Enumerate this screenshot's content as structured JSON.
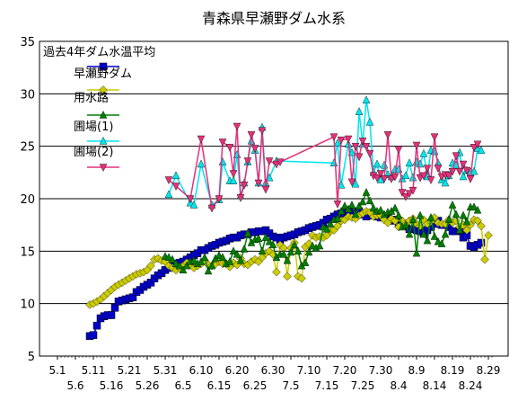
{
  "chart_data": {
    "type": "line",
    "title": "青森県早瀬野ダム水系",
    "xlabel": "",
    "ylabel": "",
    "ylim": [
      5,
      35
    ],
    "yticks": [
      5,
      10,
      15,
      20,
      25,
      30,
      35
    ],
    "x_domain": [
      0,
      121
    ],
    "x_ticks_upper": [
      {
        "label": "5.1",
        "x": 0
      },
      {
        "label": "5.11",
        "x": 10
      },
      {
        "label": "5.21",
        "x": 20
      },
      {
        "label": "5.31",
        "x": 30
      },
      {
        "label": "6.10",
        "x": 40
      },
      {
        "label": "6.20",
        "x": 50
      },
      {
        "label": "6.30",
        "x": 60
      },
      {
        "label": "7.10",
        "x": 70
      },
      {
        "label": "7.20",
        "x": 80
      },
      {
        "label": "7.30",
        "x": 90
      },
      {
        "label": "8.9",
        "x": 100
      },
      {
        "label": "8.19",
        "x": 110
      },
      {
        "label": "8.29",
        "x": 120
      }
    ],
    "x_ticks_lower": [
      {
        "label": "5.6",
        "x": 5
      },
      {
        "label": "5.16",
        "x": 15
      },
      {
        "label": "5.26",
        "x": 25
      },
      {
        "label": "6.5",
        "x": 35
      },
      {
        "label": "6.15",
        "x": 45
      },
      {
        "label": "6.25",
        "x": 55
      },
      {
        "label": "7.5",
        "x": 65
      },
      {
        "label": "7.15",
        "x": 75
      },
      {
        "label": "7.25",
        "x": 85
      },
      {
        "label": "8.4",
        "x": 95
      },
      {
        "label": "8.14",
        "x": 105
      },
      {
        "label": "8.24",
        "x": 115
      }
    ],
    "grid": "horizontal",
    "legend_position": "top-left",
    "series": [
      {
        "name": "過去4年ダム水温平均",
        "color": "#0000cc",
        "marker": "square",
        "x": [
          9,
          10,
          11,
          12,
          13,
          14,
          15,
          16,
          17,
          18,
          19,
          20,
          21,
          22,
          23,
          24,
          25,
          26,
          27,
          28,
          29,
          30,
          31,
          32,
          33,
          34,
          35,
          36,
          37,
          38,
          39,
          40,
          41,
          42,
          43,
          44,
          45,
          46,
          47,
          48,
          49,
          50,
          51,
          52,
          53,
          54,
          55,
          56,
          57,
          58,
          59,
          60,
          61,
          62,
          63,
          64,
          65,
          66,
          67,
          68,
          69,
          70,
          71,
          72,
          73,
          74,
          75,
          76,
          77,
          78,
          79,
          80,
          81,
          82,
          83,
          84,
          85,
          86,
          87,
          88,
          89,
          90,
          91,
          92,
          93,
          94,
          95,
          96,
          97,
          98,
          99,
          100,
          101,
          102,
          103,
          104,
          105,
          106,
          107,
          108,
          109,
          110,
          111,
          112,
          113,
          114,
          115,
          116,
          117,
          118
        ],
        "y": [
          6.9,
          7.0,
          7.9,
          8.6,
          8.8,
          8.9,
          8.9,
          9.6,
          10.2,
          10.3,
          10.4,
          10.5,
          10.6,
          11.1,
          11.3,
          11.6,
          11.8,
          12.0,
          12.4,
          12.7,
          12.9,
          13.2,
          13.4,
          13.6,
          13.8,
          13.9,
          14.0,
          14.2,
          14.4,
          14.6,
          14.8,
          15.1,
          15.1,
          15.3,
          15.5,
          15.6,
          15.8,
          15.9,
          16.0,
          16.2,
          16.3,
          16.3,
          16.5,
          16.6,
          16.6,
          16.8,
          16.8,
          16.9,
          16.9,
          17.0,
          16.7,
          16.4,
          16.3,
          16.1,
          16.3,
          16.4,
          16.5,
          16.6,
          16.8,
          16.9,
          17.0,
          17.2,
          17.3,
          17.4,
          17.5,
          17.7,
          18.0,
          18.1,
          18.3,
          18.5,
          18.6,
          18.7,
          18.8,
          18.7,
          18.6,
          18.8,
          18.5,
          18.3,
          18.6,
          18.4,
          18.3,
          18.2,
          18.3,
          18.1,
          17.9,
          18.0,
          17.6,
          17.5,
          17.4,
          17.1,
          17.1,
          17.0,
          16.9,
          16.7,
          17.0,
          17.3,
          17.6,
          17.9,
          17.5,
          17.5,
          17.3,
          16.9,
          16.9,
          17.0,
          16.3,
          16.5,
          15.5,
          15.4,
          15.6,
          15.8
        ]
      },
      {
        "name": "早瀬野ダム",
        "color": "#cccc00",
        "marker": "diamond",
        "x": [
          9,
          10,
          11,
          12,
          13,
          14,
          15,
          16,
          17,
          18,
          19,
          20,
          21,
          22,
          23,
          24,
          25,
          26,
          27,
          28,
          29,
          30,
          31,
          32,
          33,
          34,
          35,
          36,
          37,
          38,
          39,
          40,
          41,
          42,
          43,
          44,
          45,
          46,
          47,
          48,
          49,
          50,
          51,
          52,
          53,
          54,
          55,
          56,
          57,
          58,
          59,
          60,
          61,
          62,
          63,
          64,
          65,
          66,
          67,
          68,
          69,
          70,
          71,
          72,
          73,
          74,
          75,
          76,
          77,
          78,
          79,
          80,
          81,
          82,
          83,
          84,
          85,
          86,
          87,
          88,
          89,
          90,
          91,
          92,
          93,
          94,
          95,
          96,
          97,
          98,
          99,
          100,
          101,
          102,
          103,
          104,
          105,
          106,
          107,
          108,
          109,
          110,
          111,
          112,
          113,
          114,
          115,
          116,
          117,
          118,
          119,
          120
        ],
        "y": [
          9.9,
          10.0,
          10.2,
          10.4,
          10.7,
          11.0,
          11.3,
          11.6,
          11.8,
          12.0,
          12.2,
          12.4,
          12.6,
          12.8,
          12.9,
          13.0,
          13.2,
          13.6,
          14.2,
          14.3,
          14.1,
          14.0,
          13.6,
          13.4,
          13.2,
          13.4,
          13.6,
          13.9,
          13.7,
          13.4,
          13.6,
          13.8,
          14.1,
          13.7,
          13.6,
          13.8,
          14.0,
          13.8,
          13.8,
          13.5,
          13.9,
          13.7,
          14.3,
          13.8,
          13.7,
          14.0,
          14.2,
          14.0,
          14.4,
          14.8,
          15.0,
          14.7,
          13.0,
          15.6,
          15.3,
          12.6,
          15.3,
          15.8,
          12.6,
          12.4,
          15.4,
          15.7,
          16.5,
          16.3,
          16.4,
          16.3,
          16.5,
          16.9,
          17.0,
          17.4,
          17.9,
          18.0,
          18.3,
          18.2,
          18.1,
          18.4,
          18.6,
          18.8,
          18.7,
          18.3,
          18.4,
          18.4,
          18.0,
          17.7,
          18.1,
          17.9,
          17.3,
          17.9,
          17.6,
          17.9,
          18.1,
          17.6,
          17.4,
          18.0,
          17.6,
          17.8,
          18.2,
          17.7,
          17.6,
          17.6,
          18.0,
          17.7,
          17.9,
          17.3,
          17.5,
          17.0,
          17.5,
          18.0,
          17.9,
          17.4,
          14.2,
          16.5
        ]
      },
      {
        "name": "用水路",
        "color": "#008000",
        "marker": "triangle-up",
        "x": [
          30,
          31,
          32,
          33,
          34,
          35,
          36,
          37,
          38,
          39,
          40,
          41,
          42,
          43,
          44,
          45,
          46,
          47,
          48,
          49,
          50,
          51,
          52,
          53,
          54,
          55,
          56,
          57,
          58,
          59,
          60,
          61,
          62,
          63,
          64,
          65,
          66,
          67,
          68,
          69,
          70,
          71,
          72,
          73,
          74,
          75,
          76,
          77,
          78,
          79,
          80,
          81,
          82,
          83,
          84,
          85,
          86,
          87,
          88,
          89,
          90,
          91,
          92,
          93,
          94,
          95,
          96,
          97,
          98,
          99,
          100,
          101,
          102,
          103,
          104,
          105,
          106,
          107,
          108,
          109,
          110,
          111,
          112,
          113,
          114,
          115,
          116,
          117
        ],
        "y": [
          14.5,
          14.4,
          14.2,
          13.8,
          13.6,
          13.2,
          13.6,
          14.0,
          14.1,
          13.8,
          14.0,
          14.4,
          13.1,
          13.6,
          14.3,
          14.6,
          14.4,
          13.8,
          14.0,
          15.0,
          14.7,
          14.1,
          15.2,
          16.7,
          15.8,
          16.1,
          16.2,
          15.0,
          16.3,
          15.9,
          15.6,
          14.4,
          14.7,
          14.7,
          14.1,
          14.9,
          15.6,
          15.0,
          13.6,
          13.9,
          14.9,
          15.5,
          15.3,
          15.5,
          17.3,
          17.1,
          17.6,
          18.0,
          18.1,
          18.8,
          19.3,
          19.0,
          19.4,
          18.5,
          19.3,
          19.7,
          20.6,
          19.8,
          19.1,
          18.8,
          18.9,
          18.5,
          18.7,
          18.8,
          19.1,
          18.4,
          17.3,
          17.5,
          16.6,
          18.0,
          14.8,
          18.4,
          16.6,
          16.0,
          18.2,
          16.4,
          15.9,
          15.7,
          16.6,
          18.0,
          19.4,
          18.5,
          17.0,
          18.4,
          17.8,
          19.2,
          19.2,
          18.9
        ]
      },
      {
        "name": "圃場(1)",
        "color": "#00e5ee",
        "marker": "triangle-up",
        "x": [
          31,
          33,
          37,
          38,
          40,
          43,
          45,
          46,
          48,
          49,
          50,
          51,
          52,
          53,
          54,
          55,
          56,
          57,
          58,
          59,
          61,
          77,
          78,
          79,
          81,
          82,
          83,
          84,
          85,
          86,
          87,
          88,
          89,
          90,
          91,
          92,
          93,
          94,
          95,
          96,
          97,
          98,
          99,
          100,
          101,
          102,
          103,
          104,
          105,
          106,
          107,
          108,
          109,
          110,
          111,
          112,
          113,
          114,
          115,
          116,
          117,
          118
        ],
        "y": [
          20.4,
          22.2,
          19.6,
          19.4,
          23.3,
          19.4,
          19.9,
          23.5,
          21.7,
          21.7,
          24.2,
          20.3,
          21.5,
          23.5,
          25.5,
          24.6,
          21.5,
          26.8,
          21.5,
          22.0,
          23.6,
          23.4,
          25.3,
          21.3,
          25.2,
          24.4,
          21.4,
          28.3,
          25.2,
          29.4,
          27.3,
          22.5,
          23.3,
          21.8,
          23.2,
          22.3,
          22.1,
          22.8,
          22.8,
          21.9,
          22.2,
          23.4,
          22.0,
          23.5,
          23.3,
          24.3,
          22.1,
          24.6,
          24.5,
          23.4,
          21.8,
          21.5,
          22.2,
          23.4,
          23.2,
          24.4,
          22.1,
          22.7,
          22.5,
          22.6,
          24.8,
          24.6
        ]
      },
      {
        "name": "圃場(2)",
        "color": "#e6307a",
        "marker": "triangle-down",
        "x": [
          31,
          33,
          37,
          40,
          43,
          45,
          46,
          48,
          49,
          50,
          51,
          52,
          53,
          54,
          55,
          56,
          57,
          58,
          59,
          61,
          62,
          77,
          78,
          79,
          81,
          82,
          83,
          84,
          85,
          86,
          87,
          88,
          89,
          90,
          91,
          92,
          93,
          94,
          95,
          96,
          97,
          98,
          99,
          100,
          101,
          102,
          103,
          104,
          105,
          106,
          107,
          108,
          109,
          110,
          111,
          112,
          113,
          114,
          115,
          116,
          117
        ],
        "y": [
          21.8,
          21.2,
          20.0,
          25.7,
          19.1,
          20.0,
          25.4,
          24.9,
          22.4,
          26.9,
          20.1,
          21.3,
          23.6,
          26.1,
          24.8,
          21.5,
          26.5,
          20.9,
          23.6,
          23.3,
          23.5,
          25.9,
          19.5,
          25.6,
          25.7,
          21.6,
          25.0,
          24.0,
          25.5,
          25.0,
          24.3,
          22.2,
          22.0,
          22.4,
          21.9,
          26.1,
          21.9,
          22.1,
          24.7,
          20.6,
          20.2,
          20.5,
          20.8,
          25.1,
          22.0,
          22.2,
          22.9,
          21.8,
          25.9,
          22.9,
          22.1,
          22.3,
          22.2,
          22.6,
          24.1,
          22.6,
          23.3,
          22.7,
          21.9,
          24.9,
          25.2
        ]
      }
    ]
  }
}
